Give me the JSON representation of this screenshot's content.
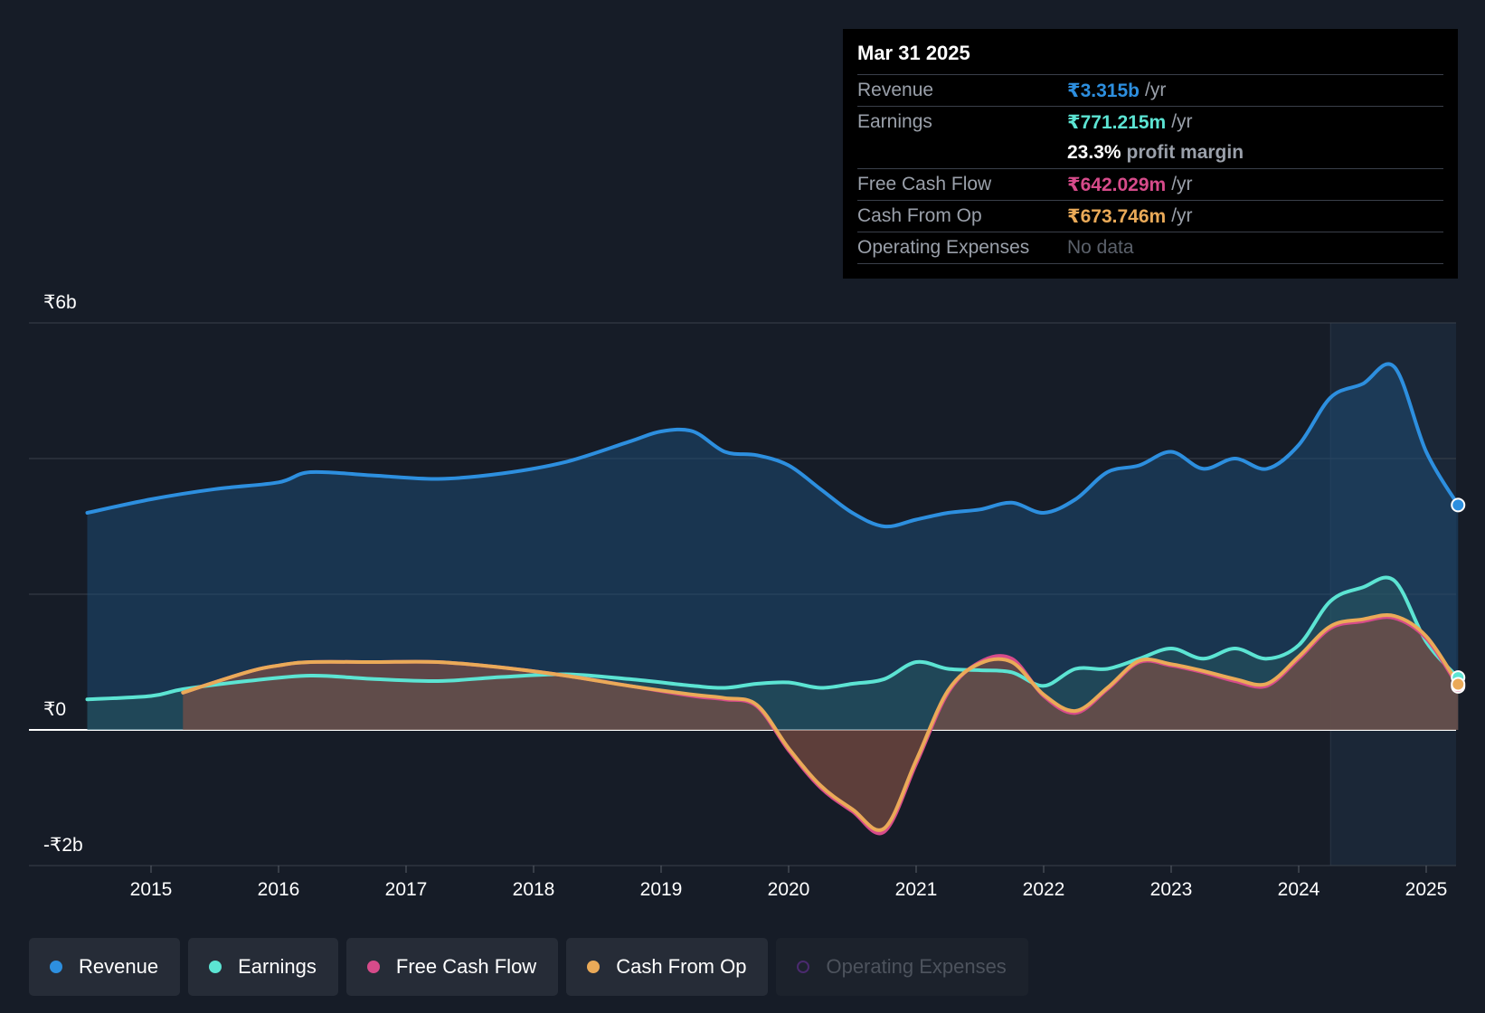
{
  "colors": {
    "background": "#161c27",
    "revenue": "#2d8fdf",
    "earnings": "#5ce4d3",
    "free_cash_flow": "#d64b8a",
    "cash_from_op": "#eaaa58",
    "operating_expenses": "#4a2a6e"
  },
  "tooltip": {
    "date": "Mar 31 2025",
    "rows": [
      {
        "label": "Revenue",
        "value": "₹3.315b",
        "unit": "/yr"
      },
      {
        "label": "Earnings",
        "value": "₹771.215m",
        "unit": "/yr"
      },
      {
        "label": "",
        "value": "23.3%",
        "unit": "profit margin"
      },
      {
        "label": "Free Cash Flow",
        "value": "₹642.029m",
        "unit": "/yr"
      },
      {
        "label": "Cash From Op",
        "value": "₹673.746m",
        "unit": "/yr"
      },
      {
        "label": "Operating Expenses",
        "value": "No data",
        "unit": ""
      }
    ]
  },
  "legend": [
    {
      "label": "Revenue",
      "icon": "filled-circle"
    },
    {
      "label": "Earnings",
      "icon": "filled-circle"
    },
    {
      "label": "Free Cash Flow",
      "icon": "filled-circle"
    },
    {
      "label": "Cash From Op",
      "icon": "filled-circle"
    },
    {
      "label": "Operating Expenses",
      "icon": "hollow-circle"
    }
  ],
  "chart_data": {
    "type": "area",
    "title": "",
    "xlabel": "",
    "ylabel": "",
    "xlim": [
      2014.5,
      2025.25
    ],
    "ylim": [
      -2,
      6
    ],
    "y_tick_labels": [
      {
        "value": 6,
        "label": "₹6b"
      },
      {
        "value": 0,
        "label": "₹0"
      },
      {
        "value": -2,
        "label": "-₹2b"
      }
    ],
    "x_ticks": [
      2015,
      2016,
      2017,
      2018,
      2019,
      2020,
      2021,
      2022,
      2023,
      2024,
      2025
    ],
    "x_tick_labels": [
      "2015",
      "2016",
      "2017",
      "2018",
      "2019",
      "2020",
      "2021",
      "2022",
      "2023",
      "2024",
      "2025"
    ],
    "gridlines_at": [
      6,
      4,
      2,
      0,
      -2
    ],
    "highlight_from": 2024.25,
    "series": [
      {
        "name": "Revenue",
        "unit": "₹b",
        "points": [
          [
            2014.5,
            3.2
          ],
          [
            2015.0,
            3.4
          ],
          [
            2015.5,
            3.55
          ],
          [
            2016.0,
            3.65
          ],
          [
            2016.25,
            3.8
          ],
          [
            2016.75,
            3.75
          ],
          [
            2017.25,
            3.7
          ],
          [
            2017.75,
            3.78
          ],
          [
            2018.25,
            3.95
          ],
          [
            2018.75,
            4.25
          ],
          [
            2019.0,
            4.4
          ],
          [
            2019.25,
            4.4
          ],
          [
            2019.5,
            4.1
          ],
          [
            2019.75,
            4.05
          ],
          [
            2020.0,
            3.9
          ],
          [
            2020.25,
            3.55
          ],
          [
            2020.5,
            3.2
          ],
          [
            2020.75,
            3.0
          ],
          [
            2021.0,
            3.1
          ],
          [
            2021.25,
            3.2
          ],
          [
            2021.5,
            3.25
          ],
          [
            2021.75,
            3.35
          ],
          [
            2022.0,
            3.2
          ],
          [
            2022.25,
            3.4
          ],
          [
            2022.5,
            3.8
          ],
          [
            2022.75,
            3.9
          ],
          [
            2023.0,
            4.1
          ],
          [
            2023.25,
            3.85
          ],
          [
            2023.5,
            4.0
          ],
          [
            2023.75,
            3.85
          ],
          [
            2024.0,
            4.2
          ],
          [
            2024.25,
            4.9
          ],
          [
            2024.5,
            5.1
          ],
          [
            2024.75,
            5.35
          ],
          [
            2025.0,
            4.1
          ],
          [
            2025.25,
            3.315
          ]
        ]
      },
      {
        "name": "Earnings",
        "unit": "₹b",
        "points": [
          [
            2014.5,
            0.45
          ],
          [
            2015.0,
            0.5
          ],
          [
            2015.25,
            0.6
          ],
          [
            2015.75,
            0.72
          ],
          [
            2016.25,
            0.8
          ],
          [
            2016.75,
            0.75
          ],
          [
            2017.25,
            0.72
          ],
          [
            2017.75,
            0.78
          ],
          [
            2018.25,
            0.82
          ],
          [
            2018.75,
            0.75
          ],
          [
            2019.25,
            0.65
          ],
          [
            2019.5,
            0.62
          ],
          [
            2019.75,
            0.68
          ],
          [
            2020.0,
            0.7
          ],
          [
            2020.25,
            0.62
          ],
          [
            2020.5,
            0.68
          ],
          [
            2020.75,
            0.75
          ],
          [
            2021.0,
            1.0
          ],
          [
            2021.25,
            0.9
          ],
          [
            2021.5,
            0.88
          ],
          [
            2021.75,
            0.85
          ],
          [
            2022.0,
            0.65
          ],
          [
            2022.25,
            0.9
          ],
          [
            2022.5,
            0.9
          ],
          [
            2022.75,
            1.05
          ],
          [
            2023.0,
            1.2
          ],
          [
            2023.25,
            1.05
          ],
          [
            2023.5,
            1.2
          ],
          [
            2023.75,
            1.05
          ],
          [
            2024.0,
            1.25
          ],
          [
            2024.25,
            1.9
          ],
          [
            2024.5,
            2.1
          ],
          [
            2024.75,
            2.2
          ],
          [
            2025.0,
            1.3
          ],
          [
            2025.25,
            0.771
          ]
        ]
      },
      {
        "name": "Free Cash Flow",
        "unit": "₹b",
        "points": [
          [
            2015.25,
            0.55
          ],
          [
            2015.75,
            0.85
          ],
          [
            2016.0,
            0.95
          ],
          [
            2016.25,
            1.0
          ],
          [
            2016.75,
            1.0
          ],
          [
            2017.25,
            1.0
          ],
          [
            2017.75,
            0.92
          ],
          [
            2018.25,
            0.8
          ],
          [
            2018.75,
            0.65
          ],
          [
            2019.25,
            0.5
          ],
          [
            2019.5,
            0.45
          ],
          [
            2019.75,
            0.35
          ],
          [
            2020.0,
            -0.3
          ],
          [
            2020.25,
            -0.85
          ],
          [
            2020.5,
            -1.2
          ],
          [
            2020.75,
            -1.5
          ],
          [
            2021.0,
            -0.5
          ],
          [
            2021.25,
            0.55
          ],
          [
            2021.5,
            1.0
          ],
          [
            2021.75,
            1.05
          ],
          [
            2022.0,
            0.5
          ],
          [
            2022.25,
            0.25
          ],
          [
            2022.5,
            0.6
          ],
          [
            2022.75,
            1.0
          ],
          [
            2023.0,
            0.95
          ],
          [
            2023.25,
            0.85
          ],
          [
            2023.5,
            0.72
          ],
          [
            2023.75,
            0.65
          ],
          [
            2024.0,
            1.05
          ],
          [
            2024.25,
            1.5
          ],
          [
            2024.5,
            1.6
          ],
          [
            2024.75,
            1.65
          ],
          [
            2025.0,
            1.35
          ],
          [
            2025.25,
            0.642
          ]
        ]
      },
      {
        "name": "Cash From Op",
        "unit": "₹b",
        "points": [
          [
            2015.25,
            0.55
          ],
          [
            2015.75,
            0.85
          ],
          [
            2016.0,
            0.95
          ],
          [
            2016.25,
            1.0
          ],
          [
            2016.75,
            1.0
          ],
          [
            2017.25,
            1.0
          ],
          [
            2017.75,
            0.92
          ],
          [
            2018.25,
            0.8
          ],
          [
            2018.75,
            0.65
          ],
          [
            2019.25,
            0.52
          ],
          [
            2019.5,
            0.47
          ],
          [
            2019.75,
            0.37
          ],
          [
            2020.0,
            -0.27
          ],
          [
            2020.25,
            -0.82
          ],
          [
            2020.5,
            -1.17
          ],
          [
            2020.75,
            -1.45
          ],
          [
            2021.0,
            -0.45
          ],
          [
            2021.25,
            0.58
          ],
          [
            2021.5,
            0.98
          ],
          [
            2021.75,
            1.0
          ],
          [
            2022.0,
            0.52
          ],
          [
            2022.25,
            0.28
          ],
          [
            2022.5,
            0.62
          ],
          [
            2022.75,
            1.02
          ],
          [
            2023.0,
            0.97
          ],
          [
            2023.25,
            0.87
          ],
          [
            2023.5,
            0.75
          ],
          [
            2023.75,
            0.68
          ],
          [
            2024.0,
            1.08
          ],
          [
            2024.25,
            1.53
          ],
          [
            2024.5,
            1.63
          ],
          [
            2024.75,
            1.68
          ],
          [
            2025.0,
            1.38
          ],
          [
            2025.25,
            0.674
          ]
        ]
      }
    ]
  }
}
